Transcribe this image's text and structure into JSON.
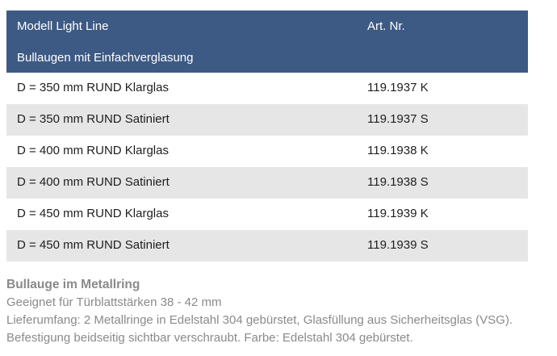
{
  "table": {
    "header": {
      "model": "Modell Light Line",
      "art_nr": "Art. Nr.",
      "subtitle": "Bullaugen mit Einfachverglasung"
    },
    "rows": [
      {
        "desc": "D = 350 mm RUND Klarglas",
        "art": "119.1937 K"
      },
      {
        "desc": "D = 350 mm RUND Satiniert",
        "art": "119.1937 S"
      },
      {
        "desc": "D = 400 mm RUND Klarglas",
        "art": "119.1938 K"
      },
      {
        "desc": "D = 400 mm RUND Satiniert",
        "art": "119.1938 S"
      },
      {
        "desc": "D = 450 mm RUND Klarglas",
        "art": "119.1939 K"
      },
      {
        "desc": "D = 450 mm RUND Satiniert",
        "art": "119.1939 S"
      }
    ]
  },
  "info": {
    "title": "Bullauge im Metallring",
    "lines": [
      "Geeignet für Türblattstärken 38 - 42 mm",
      "Lieferumfang: 2 Metallringe in Edelstahl 304 gebürstet, Glasfüllung aus Sicherheitsglas (VSG).",
      "Befestigung beidseitig sichtbar verschraubt. Farbe: Edelstahl 304 gebürstet."
    ]
  },
  "colors": {
    "header_bg": "#3d5a84",
    "row_alt_bg": "#e6e6e6",
    "info_text": "#8a8a8a"
  }
}
